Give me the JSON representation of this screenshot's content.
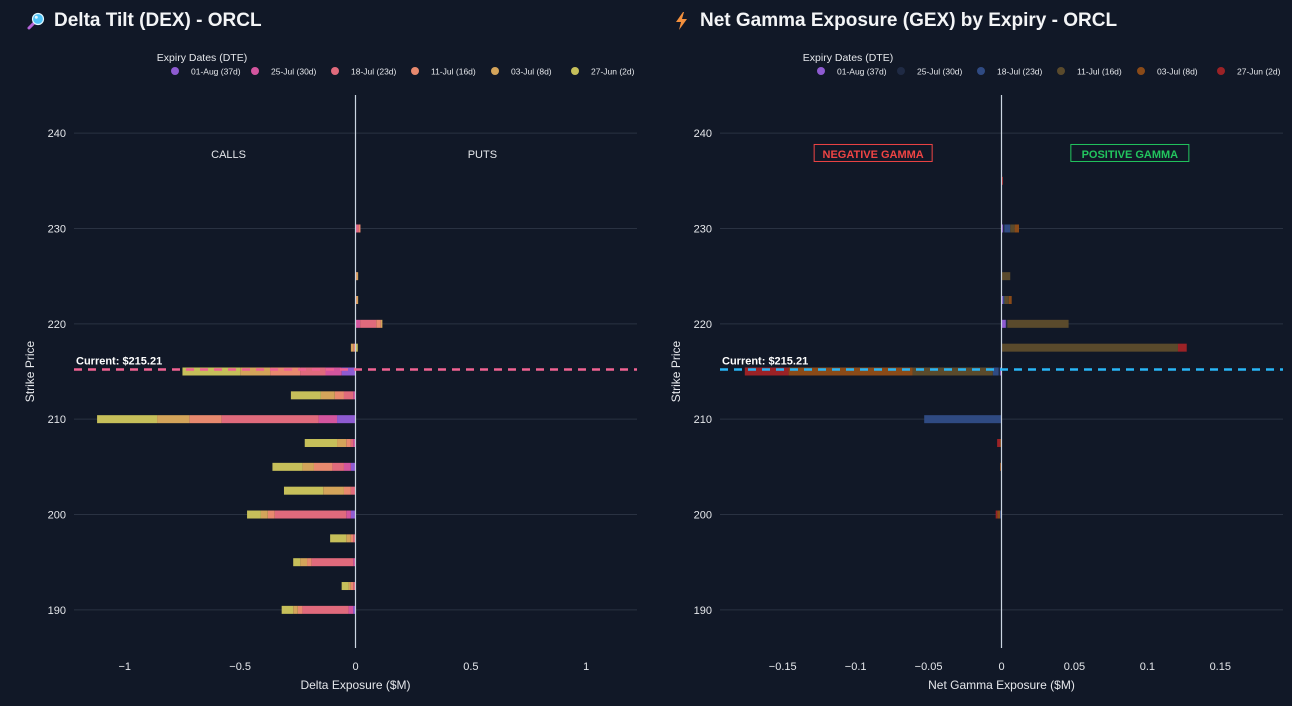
{
  "colors": {
    "background": "#111827",
    "grid": "#2a3242",
    "zero_line": "#cbd5e1",
    "text": "#e5e7eb",
    "dex_current_line": "#f06292",
    "gex_current_line": "#29b6f6",
    "negative_gamma": "#ef4444",
    "positive_gamma": "#22c55e"
  },
  "panels": {
    "dex": {
      "title": "Delta Tilt (DEX) - ORCL",
      "icon": "magnifier-icon"
    },
    "gex": {
      "title": "Net Gamma Exposure (GEX) by Expiry - ORCL",
      "icon": "lightning-icon"
    }
  },
  "chart_data": [
    {
      "type": "bar",
      "orientation": "horizontal",
      "stacked": true,
      "title": "Delta Tilt (DEX) - ORCL",
      "xlabel": "Delta Exposure ($M)",
      "ylabel": "Strike Price",
      "xlim": [
        -1.22,
        1.22
      ],
      "ylim": [
        186,
        244
      ],
      "xticks": [
        -1,
        -0.5,
        0,
        0.5,
        1
      ],
      "xtick_labels": [
        "−1",
        "−0.5",
        "0",
        "0.5",
        "1"
      ],
      "yticks": [
        190,
        200,
        210,
        220,
        230,
        240
      ],
      "grid": true,
      "legend_title": "Expiry Dates (DTE)",
      "legend_position": "top",
      "annotations": [
        {
          "text": "CALLS",
          "x": -0.55,
          "y": 237.5
        },
        {
          "text": "PUTS",
          "x": 0.55,
          "y": 237.5
        }
      ],
      "current_price": {
        "value": 215.21,
        "label": "Current: $215.21"
      },
      "strikes": [
        190,
        192.5,
        195,
        197.5,
        200,
        202.5,
        205,
        207.5,
        210,
        212.5,
        215,
        217.5,
        220,
        222.5,
        225,
        227.5,
        230,
        232.5,
        235
      ],
      "series": [
        {
          "name": "01-Aug (37d)",
          "color": "#8e5bd1",
          "values": [
            -0.01,
            0,
            0,
            0,
            -0.02,
            0,
            -0.02,
            0,
            -0.08,
            0,
            -0.06,
            0,
            0,
            0,
            0,
            0,
            0,
            0,
            0
          ]
        },
        {
          "name": "25-Jul (30d)",
          "color": "#d3559e",
          "values": [
            -0.02,
            0,
            -0.01,
            0,
            -0.02,
            0,
            -0.03,
            -0.01,
            -0.08,
            -0.01,
            -0.07,
            0,
            0.02,
            0,
            0,
            0,
            0.005,
            0,
            0
          ]
        },
        {
          "name": "18-Jul (23d)",
          "color": "#e06a7c",
          "values": [
            -0.2,
            -0.01,
            -0.18,
            -0.01,
            -0.31,
            -0.02,
            -0.05,
            -0.01,
            -0.42,
            -0.04,
            -0.11,
            0,
            0.07,
            0,
            0,
            0,
            0.01,
            0,
            0
          ]
        },
        {
          "name": "11-Jul (16d)",
          "color": "#e8896e",
          "values": [
            -0.02,
            -0.01,
            -0.02,
            -0.01,
            -0.03,
            -0.03,
            -0.08,
            -0.02,
            -0.14,
            -0.04,
            -0.13,
            -0.01,
            0.02,
            0.005,
            0.005,
            0,
            0.005,
            0,
            0
          ]
        },
        {
          "name": "03-Jul (8d)",
          "color": "#d4a45a",
          "values": [
            -0.02,
            -0.01,
            -0.03,
            -0.02,
            -0.03,
            -0.09,
            -0.05,
            -0.04,
            -0.14,
            -0.06,
            -0.13,
            -0.01,
            0.005,
            0.005,
            0.005,
            0,
            0,
            0,
            0
          ]
        },
        {
          "name": "27-Jun (2d)",
          "color": "#c6bf5a",
          "values": [
            -0.05,
            -0.03,
            -0.03,
            -0.07,
            -0.06,
            -0.17,
            -0.13,
            -0.14,
            -0.26,
            -0.13,
            -0.25,
            0.01,
            0,
            0,
            0,
            0,
            0,
            0,
            0
          ]
        }
      ]
    },
    {
      "type": "bar",
      "orientation": "horizontal",
      "stacked": true,
      "title": "Net Gamma Exposure (GEX) by Expiry - ORCL",
      "xlabel": "Net Gamma Exposure ($M)",
      "ylabel": "Strike Price",
      "xlim": [
        -0.193,
        0.193
      ],
      "ylim": [
        186,
        244
      ],
      "xticks": [
        -0.15,
        -0.1,
        -0.05,
        0,
        0.05,
        0.1,
        0.15
      ],
      "xtick_labels": [
        "−0.15",
        "−0.1",
        "−0.05",
        "0",
        "0.05",
        "0.1",
        "0.15"
      ],
      "yticks": [
        190,
        200,
        210,
        220,
        230,
        240
      ],
      "grid": true,
      "legend_title": "Expiry Dates (DTE)",
      "legend_position": "top",
      "annotations": [
        {
          "text": "NEGATIVE GAMMA",
          "x": -0.088,
          "y": 237.5,
          "boxed": true,
          "color": "#ef4444"
        },
        {
          "text": "POSITIVE GAMMA",
          "x": 0.088,
          "y": 237.5,
          "boxed": true,
          "color": "#22c55e"
        }
      ],
      "current_price": {
        "value": 215.21,
        "label": "Current: $215.21"
      },
      "strikes": [
        190,
        192.5,
        195,
        197.5,
        200,
        202.5,
        205,
        207.5,
        210,
        212.5,
        215,
        217.5,
        220,
        222.5,
        225,
        227.5,
        230,
        232.5,
        235
      ],
      "series": [
        {
          "name": "01-Aug (37d)",
          "color": "#8e5bd1",
          "values": [
            0,
            0,
            0,
            0,
            0,
            0,
            0,
            0,
            0,
            0,
            -0.001,
            0,
            0.003,
            0.001,
            0,
            0,
            0.001,
            0,
            0
          ]
        },
        {
          "name": "25-Jul (30d)",
          "color": "#1f2a44",
          "values": [
            0,
            0,
            0,
            0,
            0,
            0,
            0,
            0,
            0,
            0,
            -0.001,
            0,
            0.001,
            0,
            0,
            0,
            0.001,
            0,
            0
          ]
        },
        {
          "name": "18-Jul (23d)",
          "color": "#2f4a82",
          "values": [
            0,
            0,
            0,
            0,
            -0.001,
            0,
            0,
            0,
            -0.053,
            0,
            -0.004,
            0,
            0,
            0.001,
            0,
            0,
            0.004,
            0,
            0
          ]
        },
        {
          "name": "11-Jul (16d)",
          "color": "#5a4a2c",
          "values": [
            0,
            0,
            0,
            0,
            0,
            0,
            0,
            0,
            0,
            0,
            -0.055,
            0.121,
            0.042,
            0.003,
            0.006,
            0,
            0.003,
            0,
            0
          ]
        },
        {
          "name": "03-Jul (8d)",
          "color": "#8a4a18",
          "values": [
            0,
            0,
            0,
            0,
            -0.002,
            0,
            -0.001,
            -0.001,
            0,
            0,
            -0.085,
            0,
            0,
            0.002,
            0,
            0,
            0.003,
            0,
            0
          ]
        },
        {
          "name": "27-Jun (2d)",
          "color": "#9b2226",
          "values": [
            0,
            0,
            0,
            0,
            -0.001,
            0,
            0,
            -0.002,
            0,
            0,
            -0.03,
            0.006,
            0,
            0,
            0,
            0,
            0,
            0,
            0.001
          ]
        }
      ]
    }
  ]
}
